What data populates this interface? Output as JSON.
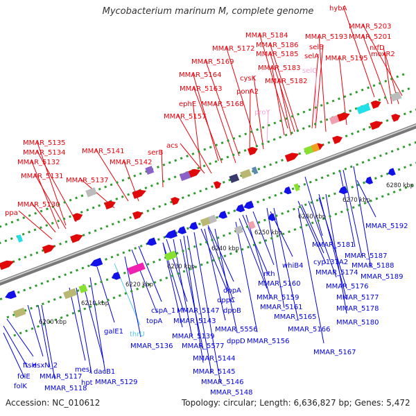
{
  "title": "Mycobacterium marinum M, complete genome",
  "footer": {
    "accession": "Accession: NC_010612",
    "summary": "Topology: circular; Length: 6,636,827 bp; Genes: 5,472"
  },
  "colors": {
    "top_strand_label": "#e8000a",
    "bottom_strand_label": "#0000e0",
    "rna_label": "#f4a6d6",
    "trna_label": "#58c8e8",
    "backbone": "#777777",
    "tick": "#2e9b2e"
  },
  "scale_labels": [
    "6200 kbp",
    "6210 kbp",
    "6220 kbp",
    "6230 kbp",
    "6240 kbp",
    "6250 kbp",
    "6260 kbp",
    "6270 kbp",
    "6280 kbp"
  ],
  "top_labels": [
    {
      "text": "hybA",
      "cls": "fwd"
    },
    {
      "text": "MMAR_5203",
      "cls": "fwd"
    },
    {
      "text": "MMAR_5184",
      "cls": "fwd"
    },
    {
      "text": "MMAR_5193",
      "cls": "fwd"
    },
    {
      "text": "MMAR_5201",
      "cls": "fwd"
    },
    {
      "text": "MMAR_5186",
      "cls": "fwd"
    },
    {
      "text": "MMAR_5172",
      "cls": "fwd"
    },
    {
      "text": "MMAR_5185",
      "cls": "fwd"
    },
    {
      "text": "selB",
      "cls": "fwd"
    },
    {
      "text": "nrfD",
      "cls": "fwd"
    },
    {
      "text": "moxR2",
      "cls": "fwd"
    },
    {
      "text": "MMAR_5169",
      "cls": "fwd"
    },
    {
      "text": "selA",
      "cls": "fwd"
    },
    {
      "text": "MMAR_5195",
      "cls": "fwd"
    },
    {
      "text": "MMAR_5183",
      "cls": "fwd"
    },
    {
      "text": "MMAR_5164",
      "cls": "fwd"
    },
    {
      "text": "cysK",
      "cls": "fwd"
    },
    {
      "text": "selC",
      "cls": "rna"
    },
    {
      "text": "MMAR_5182",
      "cls": "fwd"
    },
    {
      "text": "MMAR_5163",
      "cls": "fwd"
    },
    {
      "text": "ponA2",
      "cls": "fwd"
    },
    {
      "text": "ephE",
      "cls": "fwd"
    },
    {
      "text": "MMAR_5168",
      "cls": "fwd"
    },
    {
      "text": "proY",
      "cls": "rna"
    },
    {
      "text": "MMAR_5157",
      "cls": "fwd"
    },
    {
      "text": "MMAR_5135",
      "cls": "fwd"
    },
    {
      "text": "acs",
      "cls": "fwd"
    },
    {
      "text": "MMAR_5134",
      "cls": "fwd"
    },
    {
      "text": "MMAR_5141",
      "cls": "fwd"
    },
    {
      "text": "serB",
      "cls": "fwd"
    },
    {
      "text": "MMAR_5132",
      "cls": "fwd"
    },
    {
      "text": "MMAR_5142",
      "cls": "fwd"
    },
    {
      "text": "MMAR_5131",
      "cls": "fwd"
    },
    {
      "text": "MMAR_5137",
      "cls": "fwd"
    },
    {
      "text": "MMAR_5130",
      "cls": "fwd"
    },
    {
      "text": "ppa",
      "cls": "fwd"
    }
  ],
  "bottom_labels": [
    {
      "text": "MMAR_5192",
      "cls": "rev"
    },
    {
      "text": "MMAR_5181",
      "cls": "rev"
    },
    {
      "text": "MMAR_5187",
      "cls": "rev"
    },
    {
      "text": "cyp137A2",
      "cls": "rev"
    },
    {
      "text": "whiB4",
      "cls": "rev"
    },
    {
      "text": "MMAR_5188",
      "cls": "rev"
    },
    {
      "text": "MMAR_5174",
      "cls": "rev"
    },
    {
      "text": "MMAR_5189",
      "cls": "rev"
    },
    {
      "text": "nth",
      "cls": "rev"
    },
    {
      "text": "MMAR_5160",
      "cls": "rev"
    },
    {
      "text": "MMAR_5176",
      "cls": "rev"
    },
    {
      "text": "dppA",
      "cls": "rev"
    },
    {
      "text": "MMAR_5159",
      "cls": "rev"
    },
    {
      "text": "MMAR_5177",
      "cls": "rev"
    },
    {
      "text": "dppC",
      "cls": "rev"
    },
    {
      "text": "MMAR_5161",
      "cls": "rev"
    },
    {
      "text": "MMAR_5178",
      "cls": "rev"
    },
    {
      "text": "cspA_1",
      "cls": "rev"
    },
    {
      "text": "MMAR_5147",
      "cls": "rev"
    },
    {
      "text": "dppB",
      "cls": "rev"
    },
    {
      "text": "MMAR_5165",
      "cls": "rev"
    },
    {
      "text": "topA",
      "cls": "rev"
    },
    {
      "text": "MMAR_5143",
      "cls": "rev"
    },
    {
      "text": "MMAR_5180",
      "cls": "rev"
    },
    {
      "text": "thrU",
      "cls": "trna"
    },
    {
      "text": "MMAR_5139",
      "cls": "rev"
    },
    {
      "text": "MMAR_5556",
      "cls": "rev"
    },
    {
      "text": "MMAR_5166",
      "cls": "rev"
    },
    {
      "text": "galE1",
      "cls": "rev"
    },
    {
      "text": "dppD",
      "cls": "rev"
    },
    {
      "text": "MMAR_5156",
      "cls": "rev"
    },
    {
      "text": "MMAR_5136",
      "cls": "rev"
    },
    {
      "text": "MMAR_5577",
      "cls": "rev"
    },
    {
      "text": "MMAR_5167",
      "cls": "rev"
    },
    {
      "text": "MMAR_5144",
      "cls": "rev"
    },
    {
      "text": "mesJ",
      "cls": "rev"
    },
    {
      "text": "hpt",
      "cls": "rev"
    },
    {
      "text": "ftsH",
      "cls": "rev"
    },
    {
      "text": "esxN_2",
      "cls": "rev"
    },
    {
      "text": "dacB1",
      "cls": "rev"
    },
    {
      "text": "MMAR_5145",
      "cls": "rev"
    },
    {
      "text": "folE",
      "cls": "rev"
    },
    {
      "text": "MMAR_5117",
      "cls": "rev"
    },
    {
      "text": "MMAR_5129",
      "cls": "rev"
    },
    {
      "text": "MMAR_5146",
      "cls": "rev"
    },
    {
      "text": "folK",
      "cls": "rev"
    },
    {
      "text": "MMAR_5118",
      "cls": "rev"
    },
    {
      "text": "MMAR_5148",
      "cls": "rev"
    }
  ]
}
